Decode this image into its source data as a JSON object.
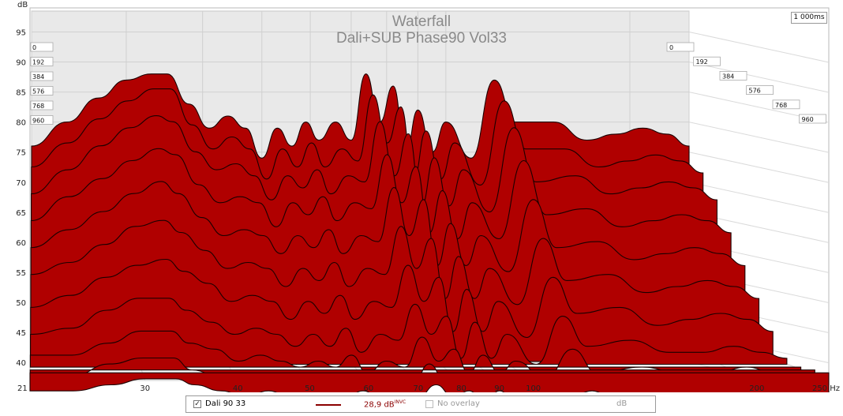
{
  "chart_data": {
    "type": "waterfall",
    "title": "Waterfall",
    "subtitle": "Dali+SUB Phase90 Vol33",
    "ylabel": "dB",
    "xunit": "Hz",
    "ylim": [
      37,
      99
    ],
    "xlim": [
      21,
      250
    ],
    "x_scale": "log",
    "grid": true,
    "y_ticks": [
      95,
      90,
      85,
      80,
      75,
      70,
      65,
      60,
      55,
      50,
      45,
      40
    ],
    "x_ticks": [
      {
        "value": 21,
        "label": "21"
      },
      {
        "value": 30,
        "label": "30"
      },
      {
        "value": 40,
        "label": "40"
      },
      {
        "value": 50,
        "label": "50"
      },
      {
        "value": 60,
        "label": "60"
      },
      {
        "value": 70,
        "label": "70"
      },
      {
        "value": 80,
        "label": "80"
      },
      {
        "value": 90,
        "label": "90"
      },
      {
        "value": 100,
        "label": "100"
      },
      {
        "value": 200,
        "label": "200"
      },
      {
        "value": 250,
        "label": "250 Hz"
      }
    ],
    "time_axis_max": "1 000ms",
    "time_labels": [
      "0",
      "192",
      "384",
      "576",
      "768",
      "960"
    ],
    "fill_color": "#b00000",
    "line_color": "#1a0000",
    "series": [
      {
        "name": "Dali 90 33",
        "slice_ms": 0,
        "x": [
          21,
          24,
          27,
          30,
          33,
          35,
          38,
          41,
          44,
          47,
          50,
          53,
          56,
          59,
          62,
          66,
          70,
          74,
          78,
          82,
          86,
          90,
          95,
          100,
          110,
          120,
          130,
          150,
          170,
          190,
          210,
          230,
          250
        ],
        "y": [
          76,
          80,
          84,
          87,
          88,
          88,
          83,
          79,
          81,
          79,
          74,
          79,
          76,
          80,
          77,
          80,
          77,
          88,
          80,
          86,
          75,
          82,
          75,
          80,
          74,
          87,
          80,
          80,
          77,
          78,
          79,
          78,
          76
        ]
      },
      {
        "slice_ms": 96,
        "x": [
          21,
          24,
          27,
          30,
          33,
          35,
          38,
          41,
          44,
          47,
          50,
          53,
          56,
          59,
          62,
          66,
          70,
          74,
          78,
          82,
          86,
          90,
          95,
          100,
          110,
          120,
          130,
          150,
          170,
          190,
          210,
          230,
          250
        ],
        "y": [
          73,
          77,
          81,
          84,
          86,
          86,
          80,
          76,
          78,
          76,
          71,
          76,
          73,
          77,
          73,
          76,
          74,
          85,
          77,
          83,
          71,
          79,
          71,
          77,
          70,
          84,
          76,
          76,
          73,
          74,
          75,
          74,
          72
        ]
      },
      {
        "slice_ms": 192,
        "x": [
          21,
          24,
          27,
          30,
          33,
          35,
          38,
          41,
          44,
          47,
          50,
          53,
          56,
          59,
          62,
          66,
          70,
          74,
          78,
          82,
          86,
          90,
          95,
          100,
          110,
          120,
          130,
          150,
          170,
          190,
          210,
          230,
          250
        ],
        "y": [
          69,
          73,
          77,
          80,
          82,
          81,
          76,
          73,
          74,
          72,
          68,
          72,
          70,
          73,
          69,
          72,
          71,
          81,
          72,
          79,
          67,
          75,
          67,
          73,
          66,
          80,
          71,
          72,
          69,
          70,
          71,
          70,
          68
        ]
      },
      {
        "slice_ms": 288,
        "x": [
          21,
          24,
          27,
          30,
          33,
          35,
          38,
          41,
          44,
          47,
          50,
          53,
          56,
          59,
          62,
          66,
          70,
          74,
          78,
          82,
          86,
          90,
          95,
          100,
          110,
          120,
          130,
          150,
          170,
          190,
          210,
          230,
          250
        ],
        "y": [
          65,
          69,
          72,
          75,
          77,
          76,
          71,
          68,
          69,
          68,
          64,
          68,
          66,
          69,
          65,
          68,
          67,
          76,
          68,
          74,
          63,
          70,
          62,
          68,
          62,
          75,
          66,
          67,
          64,
          65,
          66,
          65,
          63
        ]
      },
      {
        "slice_ms": 384,
        "x": [
          21,
          24,
          27,
          30,
          33,
          35,
          38,
          41,
          44,
          47,
          50,
          53,
          56,
          59,
          62,
          66,
          70,
          74,
          78,
          82,
          86,
          90,
          95,
          100,
          110,
          120,
          130,
          150,
          170,
          190,
          210,
          230,
          250
        ],
        "y": [
          61,
          64,
          67,
          70,
          72,
          70,
          66,
          63,
          64,
          63,
          60,
          63,
          61,
          64,
          60,
          63,
          62,
          71,
          63,
          69,
          58,
          65,
          58,
          63,
          57,
          69,
          61,
          62,
          59,
          60,
          61,
          60,
          58
        ]
      },
      {
        "slice_ms": 480,
        "x": [
          21,
          24,
          27,
          30,
          33,
          35,
          38,
          41,
          44,
          47,
          50,
          53,
          56,
          59,
          62,
          66,
          70,
          74,
          78,
          82,
          86,
          90,
          95,
          100,
          110,
          120,
          130,
          150,
          170,
          190,
          210,
          230,
          250
        ],
        "y": [
          57,
          59,
          62,
          65,
          66,
          64,
          61,
          58,
          59,
          58,
          55,
          58,
          56,
          59,
          55,
          58,
          57,
          65,
          58,
          63,
          53,
          60,
          53,
          58,
          52,
          63,
          56,
          57,
          54,
          55,
          56,
          55,
          53
        ]
      },
      {
        "slice_ms": 576,
        "x": [
          21,
          24,
          27,
          30,
          33,
          35,
          38,
          41,
          44,
          47,
          50,
          53,
          56,
          59,
          62,
          66,
          70,
          74,
          78,
          82,
          86,
          90,
          95,
          100,
          110,
          120,
          130,
          150,
          170,
          190,
          210,
          230,
          250
        ],
        "y": [
          52,
          54,
          57,
          59,
          60,
          58,
          56,
          53,
          54,
          53,
          50,
          53,
          51,
          54,
          50,
          53,
          52,
          59,
          53,
          57,
          48,
          55,
          48,
          53,
          47,
          57,
          51,
          52,
          49,
          50,
          51,
          50,
          48
        ]
      },
      {
        "slice_ms": 672,
        "x": [
          21,
          24,
          27,
          30,
          33,
          35,
          38,
          41,
          44,
          47,
          50,
          53,
          56,
          59,
          62,
          66,
          70,
          74,
          78,
          82,
          86,
          90,
          95,
          100,
          110,
          120,
          130,
          150,
          170,
          190,
          210,
          230,
          250
        ],
        "y": [
          48,
          49,
          52,
          54,
          54,
          52,
          50,
          48,
          49,
          48,
          46,
          48,
          46,
          49,
          45,
          48,
          47,
          53,
          48,
          51,
          44,
          50,
          44,
          48,
          43,
          51,
          46,
          47,
          45,
          45,
          46,
          45,
          44
        ]
      },
      {
        "slice_ms": 768,
        "x": [
          21,
          24,
          27,
          30,
          33,
          35,
          38,
          41,
          44,
          47,
          50,
          53,
          56,
          59,
          62,
          66,
          70,
          74,
          78,
          82,
          86,
          90,
          95,
          100,
          110,
          120,
          130,
          150,
          170,
          190,
          210,
          230,
          250
        ],
        "y": [
          45,
          45,
          47,
          49,
          49,
          47,
          46,
          44,
          45,
          44,
          43,
          44,
          43,
          45,
          42,
          44,
          43,
          48,
          44,
          46,
          42,
          45,
          42,
          44,
          41,
          46,
          42,
          43,
          42,
          42,
          43,
          42,
          41
        ]
      },
      {
        "slice_ms": 864,
        "x": [
          21,
          24,
          27,
          30,
          33,
          35,
          38,
          41,
          44,
          47,
          50,
          53,
          56,
          59,
          62,
          66,
          70,
          74,
          78,
          82,
          86,
          90,
          95,
          100,
          110,
          120,
          130,
          150,
          170,
          190,
          210,
          230,
          250
        ],
        "y": [
          42,
          42,
          44,
          45,
          45,
          43,
          42,
          41,
          42,
          41,
          40,
          41,
          40,
          42,
          40,
          41,
          40,
          44,
          41,
          42,
          40,
          42,
          40,
          41,
          39,
          42,
          40,
          40,
          40,
          40,
          40,
          40,
          39
        ]
      },
      {
        "slice_ms": 960,
        "x": [
          21,
          24,
          27,
          30,
          33,
          35,
          38,
          41,
          44,
          47,
          50,
          53,
          56,
          59,
          62,
          66,
          70,
          74,
          78,
          82,
          86,
          90,
          95,
          100,
          110,
          120,
          130,
          150,
          170,
          190,
          210,
          230,
          250
        ],
        "y": [
          40,
          40,
          41,
          42,
          42,
          41,
          40,
          39,
          40,
          39,
          39,
          39,
          39,
          40,
          39,
          39,
          39,
          41,
          39,
          40,
          38,
          40,
          38,
          39,
          38,
          40,
          38,
          38,
          38,
          38,
          38,
          38,
          38
        ]
      }
    ]
  },
  "legend": {
    "series_label": "Dali 90 33",
    "checked_mark": "✓",
    "value_text": "28,9 dB",
    "value_sup": "INVC",
    "overlay_label": "No overlay",
    "unit_label": "dB"
  }
}
